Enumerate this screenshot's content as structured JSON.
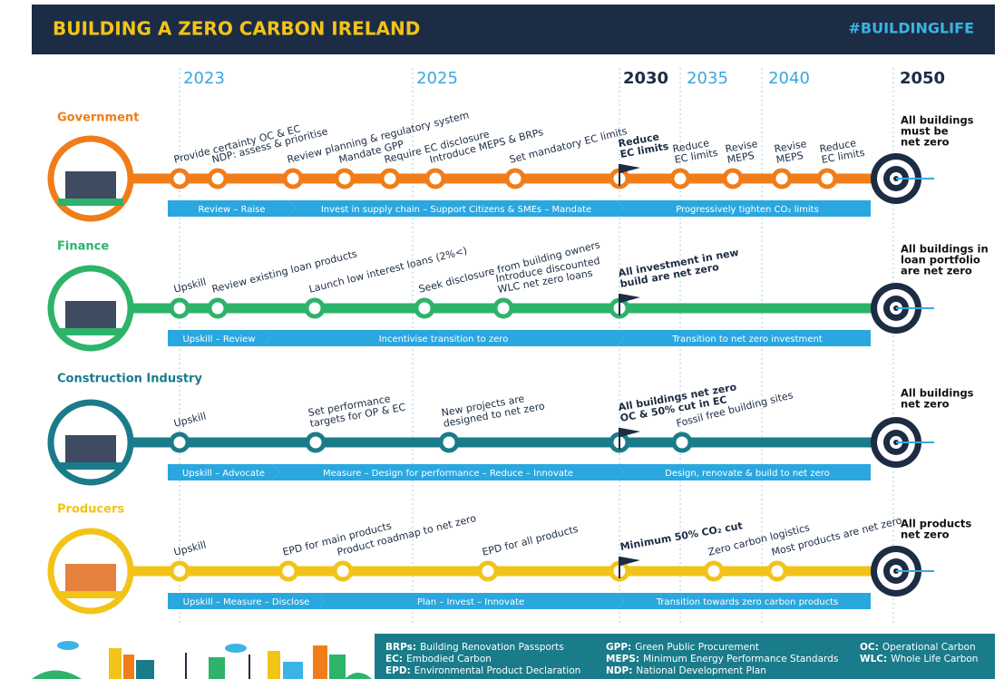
{
  "header": {
    "title": "BUILDING A ZERO CARBON IRELAND",
    "hashtag": "#BUILDINGLIFE"
  },
  "years": [
    "2023",
    "2025",
    "2030",
    "2035",
    "2040",
    "2050"
  ],
  "lanes": [
    {
      "name": "Government",
      "milestones": [
        [
          "Provide certainty OC & EC"
        ],
        [
          "NDP: assess & prioritise"
        ],
        [
          "Review planning & regulatory system"
        ],
        [
          "Mandate GPP"
        ],
        [
          "Require EC disclosure"
        ],
        [
          "Introduce MEPS & BRPs"
        ],
        [
          "Set mandatory EC limits"
        ],
        [
          "Reduce",
          "EC limits"
        ],
        [
          "Revise",
          "MEPS"
        ],
        [
          "Revise",
          "MEPS"
        ],
        [
          "Reduce",
          "EC limits"
        ]
      ],
      "milestone_2030": [
        "Reduce",
        "EC limits"
      ],
      "goal": [
        "All buildings",
        "must be",
        "net zero"
      ],
      "phases": [
        "Review – Raise",
        "Invest in supply chain – Support Citizens & SMEs – Mandate",
        "Progressively tighten CO₂ limits"
      ]
    },
    {
      "name": "Finance",
      "milestones": [
        [
          "Upskill"
        ],
        [
          "Review existing loan products"
        ],
        [
          "Launch low interest loans (2%<)"
        ],
        [
          "Seek disclosure from building owners"
        ],
        [
          "Introduce discounted",
          "WLC net zero loans"
        ]
      ],
      "milestone_2030": [
        "All investment in new",
        "build are net zero"
      ],
      "goal": [
        "All buildings in",
        "loan portfolio",
        "are net zero"
      ],
      "phases": [
        "Upskill – Review",
        "Incentivise transition to zero",
        "Transition to net zero investment"
      ]
    },
    {
      "name": "Construction Industry",
      "milestones": [
        [
          "Upskill"
        ],
        [
          "Set performance",
          "targets for OP & EC"
        ],
        [
          "New projects are",
          "designed to net zero"
        ],
        [
          "Fossil free building sites"
        ]
      ],
      "milestone_2030": [
        "All buildings net zero",
        "OC & 50% cut in EC"
      ],
      "goal": [
        "All buildings",
        "net zero"
      ],
      "phases": [
        "Upskill – Advocate",
        "Measure – Design for performance – Reduce – Innovate",
        "Design, renovate & build to net zero"
      ]
    },
    {
      "name": "Producers",
      "milestones": [
        [
          "Upskill"
        ],
        [
          "EPD for main products"
        ],
        [
          "Product roadmap to net zero"
        ],
        [
          "EPD for all products"
        ],
        [
          "Zero carbon logistics"
        ],
        [
          "Most products are net zero"
        ]
      ],
      "milestone_2030": [
        "Minimum 50% CO₂ cut"
      ],
      "goal": [
        "All products",
        "net zero"
      ],
      "phases": [
        "Upskill – Measure – Disclose",
        "Plan – Invest – Innovate",
        "Transition towards zero carbon products"
      ]
    }
  ],
  "glossary": [
    {
      "term": "BRPs:",
      "definition": "Building Renovation Passports"
    },
    {
      "term": "EC:",
      "definition": "Embodied Carbon"
    },
    {
      "term": "EPD:",
      "definition": "Environmental Product Declaration"
    },
    {
      "term": "GPP:",
      "definition": "Green Public Procurement"
    },
    {
      "term": "MEPS:",
      "definition": "Minimum Energy Performance Standards"
    },
    {
      "term": "NDP:",
      "definition": "National Development Plan"
    },
    {
      "term": "OC:",
      "definition": "Operational Carbon"
    },
    {
      "term": "WLC:",
      "definition": "Whole Life Carbon"
    }
  ]
}
